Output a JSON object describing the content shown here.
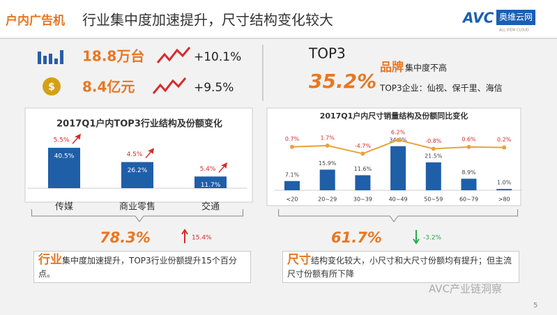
{
  "header": {
    "badge": "户内广告机",
    "title": "行业集中度加速提升，尺寸结构变化较大",
    "logo": "AVC",
    "logo_cn": "奥维云网",
    "logo_en": "ALL VIEW CLOUD"
  },
  "kpis": {
    "volume": "18.8万台",
    "volume_growth": "+10.1%",
    "revenue": "8.4亿元",
    "revenue_growth": "+9.5%",
    "top3_label": "TOP3",
    "top3_share": "35.2%",
    "brand_key": "品牌",
    "brand_note": "集中度不高",
    "top3_companies": "TOP3企业：仙视、保千里、海信"
  },
  "chart_data": [
    {
      "type": "bar",
      "title": "2017Q1户内TOP3行业结构及份额变化",
      "categories": [
        "传媒",
        "商业零售",
        "交通"
      ],
      "values": [
        40.5,
        26.2,
        11.7
      ],
      "value_labels": [
        "40.5%",
        "26.2%",
        "11.7%"
      ],
      "changes": [
        5.5,
        4.5,
        5.4
      ],
      "change_labels": [
        "5.5%",
        "4.5%",
        "5.4%"
      ],
      "color": "#1f5fa8",
      "summary_share": "78.3%",
      "summary_change": "15.4%"
    },
    {
      "type": "bar-line",
      "title": "2017Q1户内尺寸销量结构及份额同比变化",
      "categories": [
        "<20",
        "20~29",
        "30~39",
        "40~49",
        "50~59",
        "60~79",
        ">80"
      ],
      "values": [
        7.1,
        15.9,
        11.6,
        34.0,
        21.5,
        8.9,
        1.0
      ],
      "value_labels": [
        "7.1%",
        "15.9%",
        "11.6%",
        "34.0%",
        "21.5%",
        "8.9%",
        "1.0%"
      ],
      "line_values": [
        0.7,
        1.7,
        -4.7,
        6.2,
        -0.8,
        0.6,
        0.2
      ],
      "line_labels": [
        "0.7%",
        "1.7%",
        "-4.7%",
        "6.2%",
        "-0.8%",
        "0.6%",
        "0.2%"
      ],
      "color": "#1f5fa8",
      "line_color": "#e8a33d",
      "summary_share": "61.7%",
      "summary_change": "-3.2%"
    }
  ],
  "notes": {
    "industry_key": "行业",
    "industry_text": "集中度加速提升，TOP3行业份额提升15个百分点。",
    "size_key": "尺寸",
    "size_text": "结构变化较大，小尺寸和大尺寸份额均有提升；但主流尺寸份额有所下降"
  },
  "footer": {
    "watermark": "AVC产业链洞察",
    "page": "5"
  }
}
